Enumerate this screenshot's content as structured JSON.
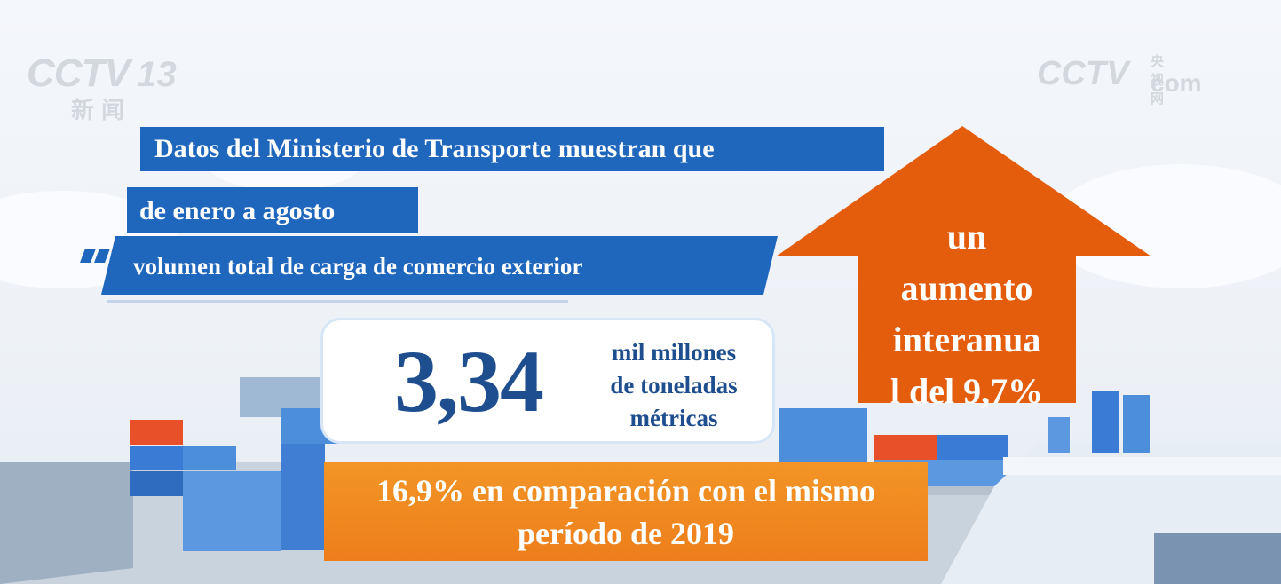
{
  "logos": {
    "left_channel": "CCTV",
    "left_number": "13",
    "left_sub": "新闻",
    "right_brand": "CCTV",
    "right_top": "央视网",
    "right_sub": "com"
  },
  "headline": {
    "line1": "Datos del Ministerio de Transporte muestran que",
    "line2": "de enero a agosto",
    "line3": "volumen total de carga de comercio exterior"
  },
  "stat": {
    "value": "3,34",
    "unit_line1": "mil millones",
    "unit_line2": "de toneladas",
    "unit_line3": "métricas"
  },
  "comparison": {
    "line1": "16,9% en comparación con el mismo",
    "line2": "período de 2019"
  },
  "increase": {
    "line1": "un",
    "line2": "aumento",
    "line3": "interanua",
    "line4": "l del 9,7%"
  },
  "colors": {
    "headline_blue": "#1f66bd",
    "number_blue": "#1f4e8f",
    "orange": "#ee7e1b",
    "arrow_orange": "#e35d0c"
  }
}
